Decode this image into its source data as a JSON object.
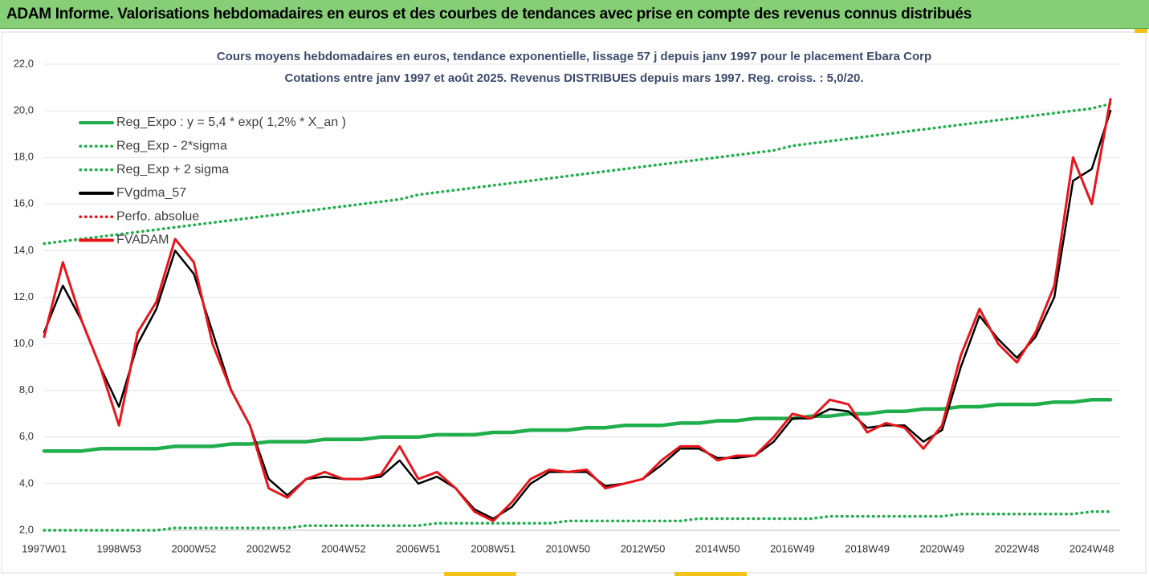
{
  "banner": "ADAM Informe. Valorisations hebdomadaires en euros et des courbes de tendances avec prise en compte des revenus connus distribués",
  "chart_data": {
    "type": "line",
    "title": "Cours moyens hebdomadaires en euros, tendance exponentielle, lissage 57 j depuis janv 1997 pour le placement Ebara Corp",
    "subtitle": "Cotations entre janv 1997 et août 2025.  Revenus DISTRIBUES depuis mars 1997. Reg. croiss. : 5,0/20.",
    "categories": [
      "1997W01",
      null,
      null,
      null,
      "1998W53",
      null,
      null,
      null,
      "2000W52",
      null,
      null,
      null,
      "2002W52",
      null,
      null,
      null,
      "2004W52",
      null,
      null,
      null,
      "2006W51",
      null,
      null,
      null,
      "2008W51",
      null,
      null,
      null,
      "2010W50",
      null,
      null,
      null,
      "2012W50",
      null,
      null,
      null,
      "2014W50",
      null,
      null,
      null,
      "2016W49",
      null,
      null,
      null,
      "2018W49",
      null,
      null,
      null,
      "2020W49",
      null,
      null,
      null,
      "2022W48",
      null,
      null,
      null,
      "2024W48",
      null
    ],
    "ylim": [
      2,
      22
    ],
    "yticks": [
      {
        "value": 2,
        "label": "2,0"
      },
      {
        "value": 4,
        "label": "4,0"
      },
      {
        "value": 6,
        "label": "6,0"
      },
      {
        "value": 8,
        "label": "8,0"
      },
      {
        "value": 10,
        "label": "10,0"
      },
      {
        "value": 12,
        "label": "12,0"
      },
      {
        "value": 14,
        "label": "14,0"
      },
      {
        "value": 16,
        "label": "16,0"
      },
      {
        "value": 18,
        "label": "18,0"
      },
      {
        "value": 20,
        "label": "20,0"
      },
      {
        "value": 22,
        "label": "22,0"
      }
    ],
    "grid": true,
    "legend": "upper left",
    "series": [
      {
        "name": "Reg_Expo : y = 5,4 * exp( 1,2% *  X_an )",
        "color": "#1fae4b",
        "style": "solid",
        "values": [
          5.4,
          5.4,
          5.4,
          5.5,
          5.5,
          5.5,
          5.5,
          5.6,
          5.6,
          5.6,
          5.7,
          5.7,
          5.8,
          5.8,
          5.8,
          5.9,
          5.9,
          5.9,
          6.0,
          6.0,
          6.0,
          6.1,
          6.1,
          6.1,
          6.2,
          6.2,
          6.3,
          6.3,
          6.3,
          6.4,
          6.4,
          6.5,
          6.5,
          6.5,
          6.6,
          6.6,
          6.7,
          6.7,
          6.8,
          6.8,
          6.8,
          6.9,
          6.9,
          7.0,
          7.0,
          7.1,
          7.1,
          7.2,
          7.2,
          7.3,
          7.3,
          7.4,
          7.4,
          7.4,
          7.5,
          7.5,
          7.6,
          7.6
        ]
      },
      {
        "name": "Reg_Exp - 2*sigma",
        "color": "#1fae4b",
        "style": "dotted",
        "values": [
          2.0,
          2.0,
          2.0,
          2.0,
          2.0,
          2.0,
          2.0,
          2.1,
          2.1,
          2.1,
          2.1,
          2.1,
          2.1,
          2.1,
          2.2,
          2.2,
          2.2,
          2.2,
          2.2,
          2.2,
          2.2,
          2.3,
          2.3,
          2.3,
          2.3,
          2.3,
          2.3,
          2.3,
          2.4,
          2.4,
          2.4,
          2.4,
          2.4,
          2.4,
          2.4,
          2.5,
          2.5,
          2.5,
          2.5,
          2.5,
          2.5,
          2.5,
          2.6,
          2.6,
          2.6,
          2.6,
          2.6,
          2.6,
          2.6,
          2.7,
          2.7,
          2.7,
          2.7,
          2.7,
          2.7,
          2.7,
          2.8,
          2.8
        ]
      },
      {
        "name": "Reg_Exp + 2 sigma",
        "color": "#1fae4b",
        "style": "dotted",
        "values": [
          14.3,
          14.4,
          14.5,
          14.6,
          14.7,
          14.8,
          14.9,
          15.0,
          15.1,
          15.2,
          15.3,
          15.4,
          15.5,
          15.6,
          15.7,
          15.8,
          15.9,
          16.0,
          16.1,
          16.2,
          16.4,
          16.5,
          16.6,
          16.7,
          16.8,
          16.9,
          17.0,
          17.1,
          17.2,
          17.3,
          17.4,
          17.5,
          17.6,
          17.7,
          17.8,
          17.9,
          18.0,
          18.1,
          18.2,
          18.3,
          18.5,
          18.6,
          18.7,
          18.8,
          18.9,
          19.0,
          19.1,
          19.2,
          19.3,
          19.4,
          19.5,
          19.6,
          19.7,
          19.8,
          19.9,
          20.0,
          20.1,
          20.3
        ]
      },
      {
        "name": "FVgdma_57",
        "color": "#000000",
        "style": "solid",
        "values": [
          10.5,
          12.5,
          11.0,
          9.0,
          7.3,
          10.0,
          11.5,
          14.0,
          13.0,
          10.5,
          8.0,
          6.5,
          4.2,
          3.5,
          4.2,
          4.3,
          4.2,
          4.2,
          4.3,
          5.0,
          4.0,
          4.3,
          3.8,
          2.9,
          2.5,
          3.0,
          4.0,
          4.5,
          4.5,
          4.5,
          3.9,
          4.0,
          4.2,
          4.8,
          5.5,
          5.5,
          5.1,
          5.1,
          5.2,
          5.8,
          6.8,
          6.8,
          7.2,
          7.1,
          6.4,
          6.5,
          6.5,
          5.8,
          6.3,
          9.0,
          11.2,
          10.2,
          9.4,
          10.3,
          12.0,
          17.0,
          17.5,
          20.0
        ]
      },
      {
        "name": "Perfo. absolue",
        "color": "#e8151b",
        "style": "dotted",
        "values": [
          null,
          null,
          null,
          null,
          null,
          null,
          null,
          null,
          null,
          null,
          null,
          null,
          null,
          null,
          null,
          null,
          null,
          null,
          null,
          null,
          null,
          null,
          null,
          null,
          null,
          null,
          null,
          null,
          null,
          null,
          null,
          null,
          null,
          null,
          null,
          null,
          null,
          null,
          null,
          null,
          null,
          null,
          null,
          null,
          null,
          null,
          null,
          null,
          null,
          null,
          null,
          null,
          null,
          null,
          null,
          null,
          null,
          null
        ]
      },
      {
        "name": "FVADAM",
        "color": "#e8151b",
        "style": "solid",
        "values": [
          10.3,
          13.5,
          11.0,
          9.0,
          6.5,
          10.5,
          11.8,
          14.5,
          13.5,
          10.0,
          8.0,
          6.5,
          3.8,
          3.4,
          4.2,
          4.5,
          4.2,
          4.2,
          4.4,
          5.6,
          4.2,
          4.5,
          3.8,
          2.8,
          2.4,
          3.2,
          4.2,
          4.6,
          4.5,
          4.6,
          3.8,
          4.0,
          4.2,
          5.0,
          5.6,
          5.6,
          5.0,
          5.2,
          5.2,
          6.0,
          7.0,
          6.8,
          7.6,
          7.4,
          6.2,
          6.6,
          6.4,
          5.5,
          6.5,
          9.5,
          11.5,
          10.0,
          9.2,
          10.5,
          12.5,
          18.0,
          16.0,
          20.5
        ]
      }
    ]
  }
}
